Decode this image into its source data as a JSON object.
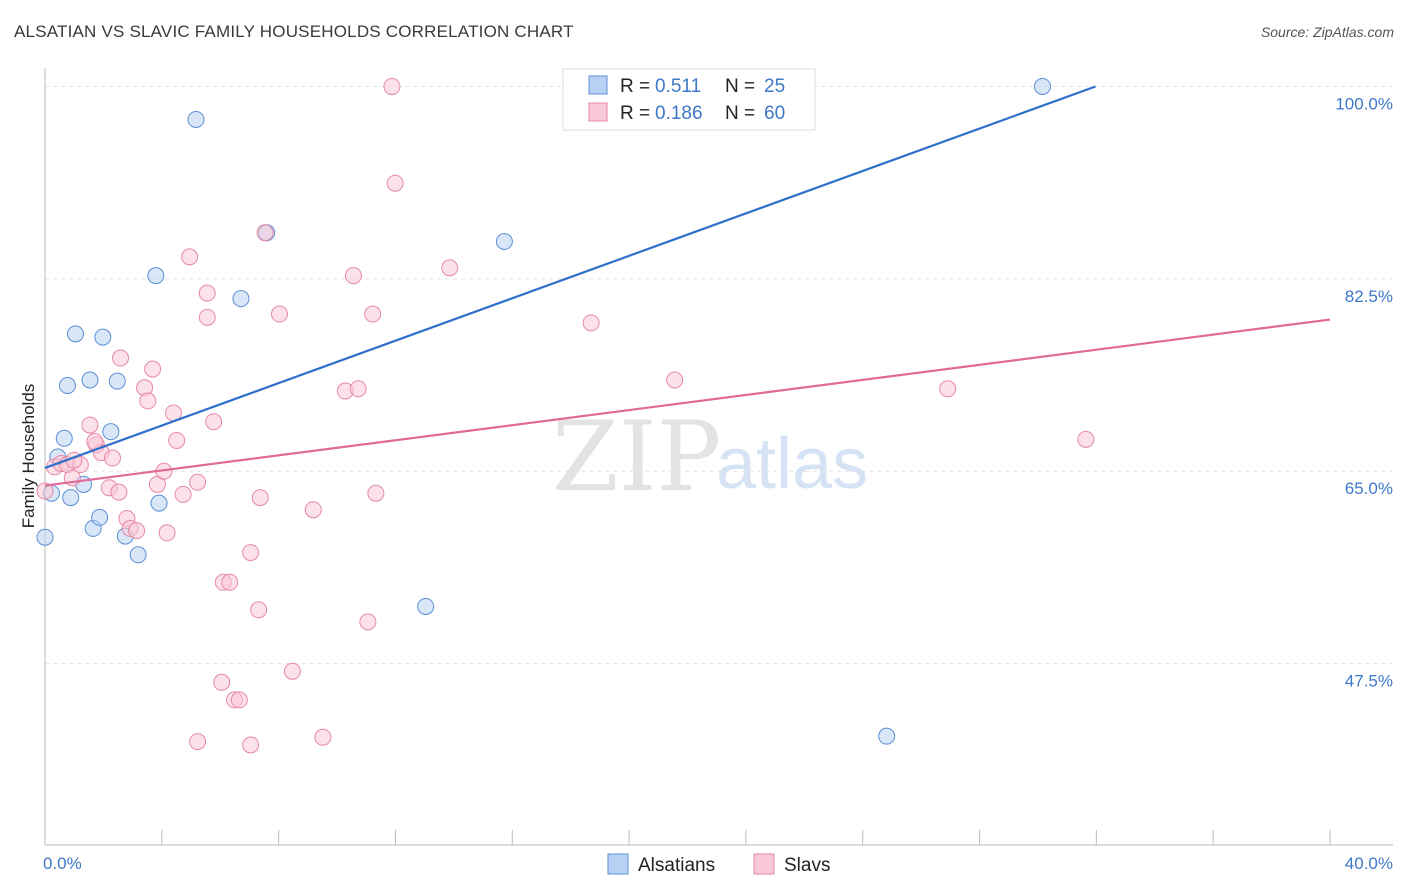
{
  "header": {
    "title": "ALSATIAN VS SLAVIC FAMILY HOUSEHOLDS CORRELATION CHART",
    "source": "Source: ZipAtlas.com"
  },
  "watermark": {
    "zip": "ZIP",
    "atlas": "atlas"
  },
  "legend_top": {
    "rows": [
      {
        "r_label": "R =",
        "r_value": "0.511",
        "n_label": "N =",
        "n_value": "25",
        "fill": "#b8d1f3",
        "stroke": "#5b8fd6"
      },
      {
        "r_label": "R =",
        "r_value": "0.186",
        "n_label": "N =",
        "n_value": "60",
        "fill": "#f9c8d6",
        "stroke": "#e689a7"
      }
    ]
  },
  "legend_bottom": {
    "items": [
      {
        "label": "Alsatians",
        "fill": "#b8d1f3",
        "stroke": "#5b8fd6"
      },
      {
        "label": "Slavs",
        "fill": "#f9c8d6",
        "stroke": "#e689a7"
      }
    ]
  },
  "chart_data": {
    "type": "scatter",
    "title": "ALSATIAN VS SLAVIC FAMILY HOUSEHOLDS CORRELATION CHART",
    "xlabel": "",
    "ylabel": "Family Households",
    "xlim": [
      0,
      40
    ],
    "ylim": [
      31,
      101.5
    ],
    "x_tick_labels": [
      {
        "value": 0,
        "label": "0.0%"
      },
      {
        "value": 40,
        "label": "40.0%"
      }
    ],
    "y_tick_labels": [
      {
        "value": 100,
        "label": "100.0%"
      },
      {
        "value": 82.5,
        "label": "82.5%"
      },
      {
        "value": 65,
        "label": "65.0%"
      },
      {
        "value": 47.5,
        "label": "47.5%"
      }
    ],
    "series": [
      {
        "name": "Alsatians",
        "color": "#5b8fd6",
        "fill": "#b8d1f3",
        "points": [
          [
            0.0,
            59.0
          ],
          [
            0.2,
            63.0
          ],
          [
            0.4,
            66.3
          ],
          [
            0.6,
            68.0
          ],
          [
            0.7,
            72.8
          ],
          [
            0.8,
            62.6
          ],
          [
            0.95,
            77.5
          ],
          [
            1.2,
            63.8
          ],
          [
            1.4,
            73.3
          ],
          [
            1.5,
            59.8
          ],
          [
            1.7,
            60.8
          ],
          [
            1.8,
            77.2
          ],
          [
            2.05,
            68.6
          ],
          [
            2.25,
            73.2
          ],
          [
            2.5,
            59.1
          ],
          [
            2.9,
            57.4
          ],
          [
            3.45,
            82.8
          ],
          [
            3.55,
            62.1
          ],
          [
            4.7,
            97.0
          ],
          [
            6.1,
            80.7
          ],
          [
            6.9,
            86.7
          ],
          [
            11.85,
            52.7
          ],
          [
            14.3,
            85.9
          ],
          [
            26.2,
            40.9
          ],
          [
            31.05,
            100.0
          ]
        ],
        "trend": {
          "x": [
            0.0,
            32.7
          ],
          "y": [
            65.3,
            100.0
          ]
        }
      },
      {
        "name": "Slavs",
        "color": "#e689a7",
        "fill": "#f9c8d6",
        "points": [
          [
            0.0,
            63.2
          ],
          [
            0.3,
            65.4
          ],
          [
            0.5,
            65.7
          ],
          [
            0.7,
            65.6
          ],
          [
            0.85,
            64.4
          ],
          [
            1.1,
            65.6
          ],
          [
            1.4,
            69.2
          ],
          [
            1.6,
            67.4
          ],
          [
            1.75,
            66.7
          ],
          [
            2.0,
            63.5
          ],
          [
            2.1,
            66.2
          ],
          [
            2.3,
            63.1
          ],
          [
            2.35,
            75.3
          ],
          [
            2.55,
            60.7
          ],
          [
            2.65,
            59.8
          ],
          [
            2.85,
            59.6
          ],
          [
            3.1,
            72.6
          ],
          [
            3.2,
            71.4
          ],
          [
            3.35,
            74.3
          ],
          [
            3.5,
            63.8
          ],
          [
            3.7,
            65.0
          ],
          [
            3.8,
            59.4
          ],
          [
            4.0,
            70.3
          ],
          [
            4.1,
            67.8
          ],
          [
            4.3,
            62.9
          ],
          [
            4.5,
            84.5
          ],
          [
            4.75,
            64.0
          ],
          [
            5.05,
            81.2
          ],
          [
            5.05,
            79.0
          ],
          [
            5.25,
            69.5
          ],
          [
            5.5,
            45.8
          ],
          [
            5.55,
            54.9
          ],
          [
            5.75,
            54.9
          ],
          [
            5.9,
            44.2
          ],
          [
            6.05,
            44.2
          ],
          [
            6.4,
            57.6
          ],
          [
            6.65,
            52.4
          ],
          [
            6.7,
            62.6
          ],
          [
            6.85,
            86.7
          ],
          [
            7.3,
            79.3
          ],
          [
            7.7,
            46.8
          ],
          [
            8.35,
            61.5
          ],
          [
            8.65,
            40.8
          ],
          [
            9.35,
            72.3
          ],
          [
            9.6,
            82.8
          ],
          [
            9.75,
            72.5
          ],
          [
            10.05,
            51.3
          ],
          [
            10.2,
            79.3
          ],
          [
            10.3,
            63.0
          ],
          [
            10.8,
            100.0
          ],
          [
            10.9,
            91.2
          ],
          [
            12.6,
            83.5
          ],
          [
            17.0,
            78.5
          ],
          [
            19.6,
            73.3
          ],
          [
            28.1,
            72.5
          ],
          [
            32.4,
            67.9
          ],
          [
            4.75,
            40.4
          ],
          [
            6.4,
            40.1
          ],
          [
            1.55,
            67.7
          ],
          [
            0.9,
            66.0
          ]
        ],
        "trend": {
          "x": [
            0.0,
            40.0
          ],
          "y": [
            63.7,
            78.8
          ]
        }
      }
    ]
  }
}
